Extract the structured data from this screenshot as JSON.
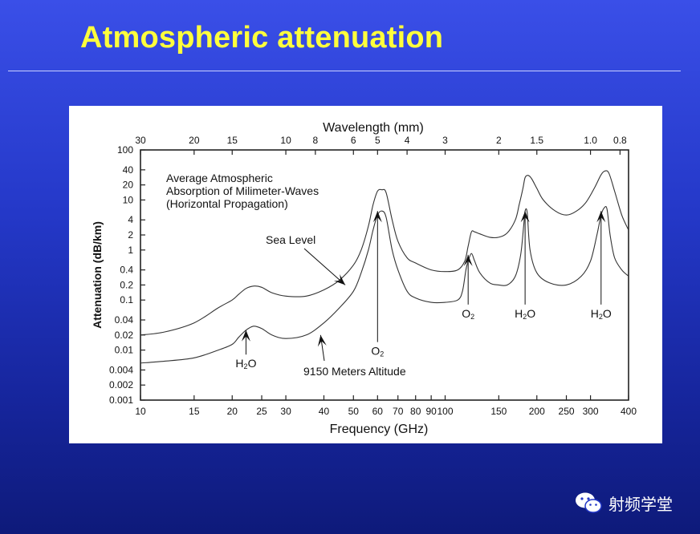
{
  "slide": {
    "title": "Atmospheric attenuation",
    "watermark": "射频学堂"
  },
  "chart_data": {
    "type": "line",
    "title": "",
    "x_scale": "log",
    "y_scale": "log",
    "xlim": [
      10,
      400
    ],
    "ylim": [
      0.001,
      100
    ],
    "xlabel": "Frequency (GHz)",
    "ylabel": "Attenuation (dB/km)",
    "x2label": "Wavelength (mm)",
    "x_ticks": [
      10,
      15,
      20,
      25,
      30,
      40,
      50,
      60,
      70,
      80,
      90,
      100,
      150,
      200,
      250,
      300,
      400
    ],
    "x_tick_labels": [
      "10",
      "15",
      "20",
      "25",
      "30",
      "40",
      "50",
      "60",
      "70",
      "80",
      "90",
      "100",
      "150",
      "200",
      "250",
      "300",
      "400"
    ],
    "y_ticks": [
      0.001,
      0.002,
      0.004,
      0.01,
      0.02,
      0.04,
      0.1,
      0.2,
      0.4,
      1,
      2,
      4,
      10,
      20,
      40,
      100
    ],
    "y_tick_labels": [
      "0.001",
      "0.002",
      "0.004",
      "0.01",
      "0.02",
      "0.04",
      "0.1",
      "0.2",
      "0.4",
      "1",
      "2",
      "4",
      "10",
      "20",
      "40",
      "100"
    ],
    "x2_ticks": [
      30,
      20,
      15,
      10,
      8,
      6,
      5,
      4,
      3,
      2,
      1.5,
      1.0,
      0.8
    ],
    "x2_tick_labels": [
      "30",
      "20",
      "15",
      "10",
      "8",
      "6",
      "5",
      "4",
      "3",
      "2",
      "1.5",
      "1.0",
      "0.8"
    ],
    "legend_text": [
      "Average Atmospheric",
      "Absorption of Milimeter-Waves",
      "(Horizontal Propagation)"
    ],
    "series": [
      {
        "name": "Sea Level",
        "x": [
          10,
          12,
          15,
          18,
          20,
          21,
          22.2,
          23.5,
          25,
          27,
          30,
          35,
          40,
          45,
          50,
          53,
          56,
          58,
          60,
          62,
          64,
          67,
          70,
          75,
          80,
          90,
          100,
          110,
          116,
          119,
          122,
          125,
          130,
          140,
          150,
          160,
          170,
          175,
          180,
          183,
          187,
          192,
          200,
          210,
          230,
          250,
          270,
          290,
          310,
          325,
          335,
          345,
          360,
          380,
          400
        ],
        "y": [
          0.02,
          0.023,
          0.035,
          0.07,
          0.1,
          0.13,
          0.17,
          0.19,
          0.18,
          0.14,
          0.12,
          0.12,
          0.16,
          0.25,
          0.5,
          1,
          3,
          8,
          15,
          16,
          14,
          4,
          1.5,
          0.7,
          0.55,
          0.4,
          0.37,
          0.4,
          0.6,
          1.2,
          2.3,
          2.3,
          2.1,
          1.8,
          1.8,
          2.2,
          4,
          8,
          17,
          28,
          31,
          27,
          17,
          10,
          6,
          5,
          6,
          9,
          18,
          32,
          38,
          34,
          15,
          5,
          2.5
        ]
      },
      {
        "name": "9150 Meters Altitude",
        "x": [
          10,
          12,
          15,
          18,
          20,
          21,
          22.2,
          23.5,
          25,
          27,
          30,
          35,
          40,
          45,
          50,
          53,
          56,
          58,
          60,
          62,
          64,
          67,
          70,
          75,
          80,
          90,
          100,
          110,
          114,
          117,
          119,
          122,
          125,
          130,
          140,
          150,
          160,
          170,
          177,
          181,
          183,
          186,
          190,
          200,
          220,
          250,
          280,
          300,
          315,
          325,
          333,
          340,
          348,
          360,
          380,
          400
        ],
        "y": [
          0.0055,
          0.006,
          0.007,
          0.01,
          0.013,
          0.018,
          0.025,
          0.03,
          0.027,
          0.02,
          0.017,
          0.02,
          0.035,
          0.07,
          0.15,
          0.35,
          1,
          2.5,
          5,
          6,
          4.5,
          1,
          0.4,
          0.15,
          0.11,
          0.09,
          0.09,
          0.1,
          0.15,
          0.4,
          0.6,
          0.85,
          0.6,
          0.35,
          0.22,
          0.2,
          0.2,
          0.3,
          0.8,
          3,
          6,
          5.5,
          1,
          0.35,
          0.22,
          0.2,
          0.3,
          0.6,
          2,
          5,
          7,
          6.5,
          2,
          0.7,
          0.4,
          0.3
        ]
      }
    ],
    "annotations": [
      {
        "text": "Sea Level",
        "points_to": [
          47,
          0.2
        ]
      },
      {
        "text": "9150 Meters Altitude",
        "points_to": [
          39,
          0.02
        ]
      },
      {
        "text": "H2O",
        "main": "H",
        "sub": "2",
        "tail": "O",
        "points_to": [
          22.2,
          0.025
        ],
        "at": [
          22.2,
          0.0045
        ]
      },
      {
        "text": "O2",
        "main": "O",
        "sub": "2",
        "tail": "",
        "points_to": [
          60,
          6
        ],
        "at": [
          60,
          0.008
        ]
      },
      {
        "text": "O2",
        "main": "O",
        "sub": "2",
        "tail": "",
        "points_to": [
          119,
          0.8
        ],
        "at": [
          119,
          0.045
        ]
      },
      {
        "text": "H2O",
        "main": "H",
        "sub": "2",
        "tail": "O",
        "points_to": [
          183,
          6
        ],
        "at": [
          183,
          0.045
        ]
      },
      {
        "text": "H2O",
        "main": "H",
        "sub": "2",
        "tail": "O",
        "points_to": [
          325,
          6
        ],
        "at": [
          325,
          0.045
        ]
      }
    ],
    "grid": false,
    "legend": "top-left"
  }
}
